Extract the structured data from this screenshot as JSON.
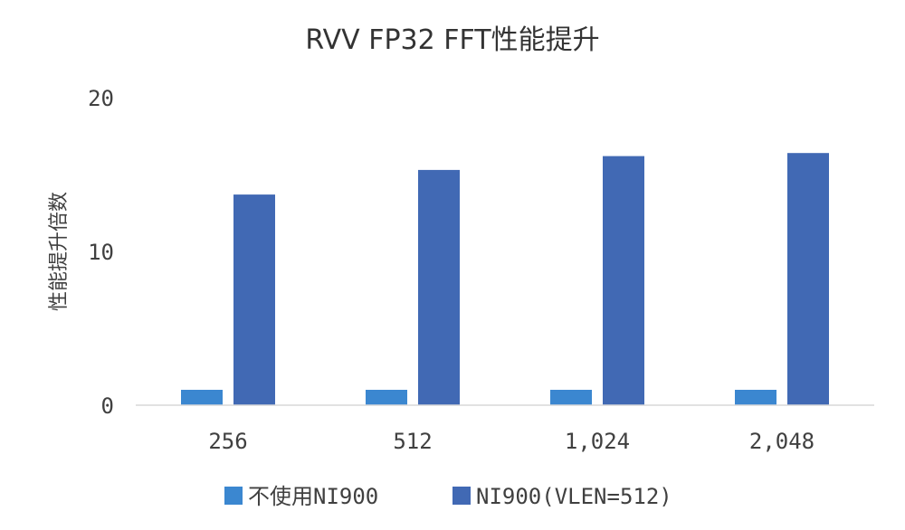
{
  "chart_data": {
    "type": "bar",
    "title": "RVV FP32 FFT性能提升",
    "ylabel": "性能提升倍数",
    "xlabel": "",
    "categories": [
      "256",
      "512",
      "1,024",
      "2,048"
    ],
    "series": [
      {
        "name": "不使用NI900",
        "color": "#3b87d0",
        "values": [
          1,
          1,
          1,
          1
        ]
      },
      {
        "name": "NI900(VLEN=512)",
        "color": "#4169b4",
        "values": [
          13.7,
          15.3,
          16.2,
          16.4
        ]
      }
    ],
    "yticks": [
      0,
      10,
      20
    ],
    "ylim": [
      0,
      20
    ],
    "grid": false,
    "legend_position": "bottom"
  }
}
